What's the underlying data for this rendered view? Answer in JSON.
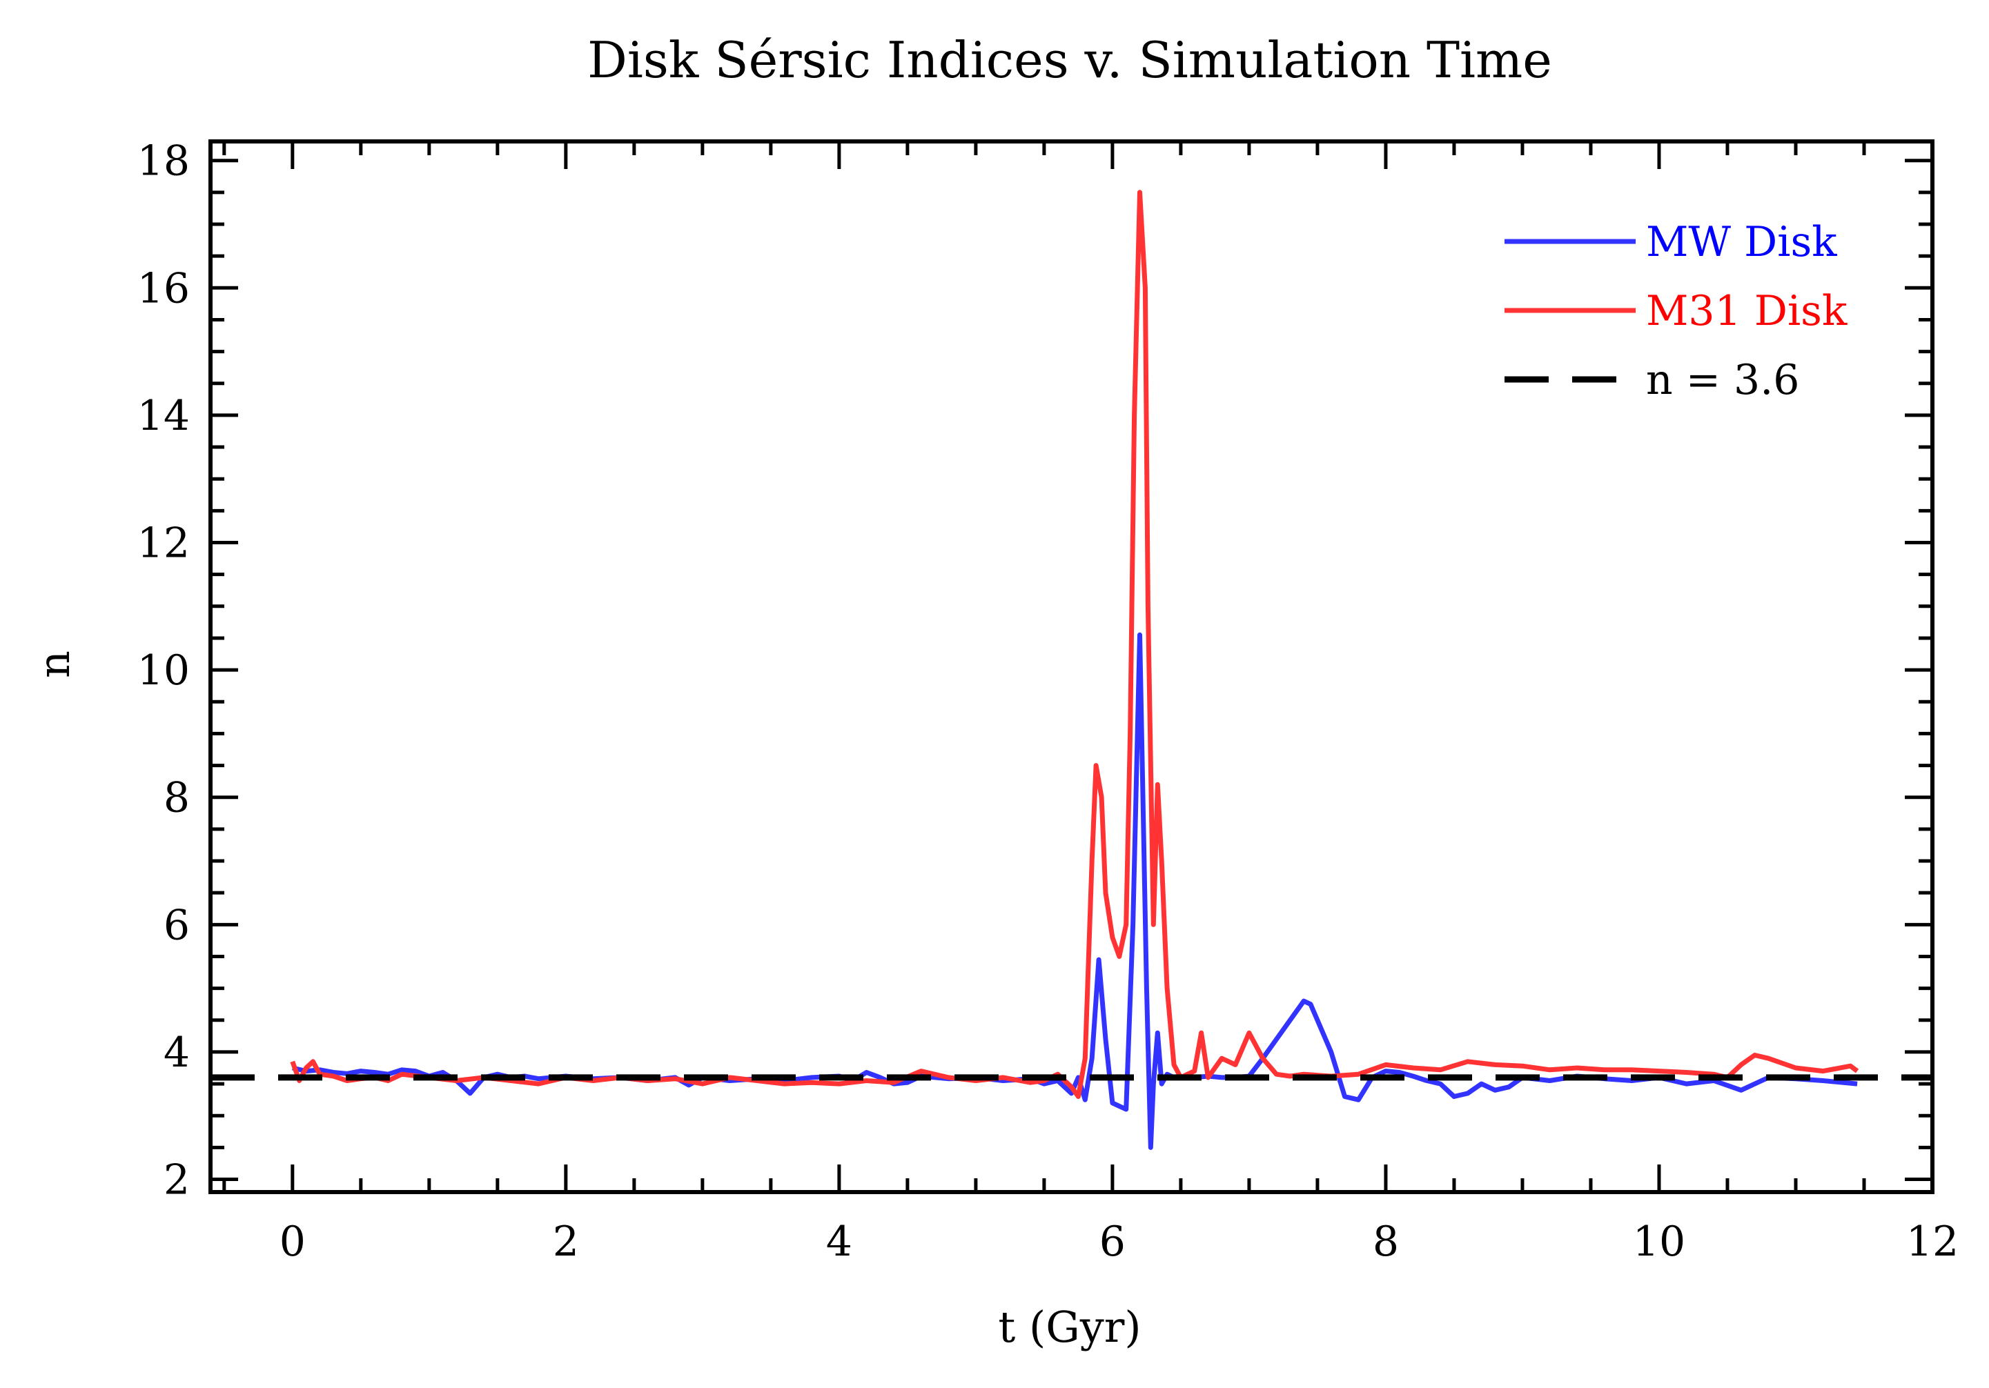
{
  "chart_data": {
    "type": "line",
    "title": "Disk Sérsic Indices v. Simulation Time",
    "xlabel": "t (Gyr)",
    "ylabel": "n",
    "xlim": [
      -0.6,
      12
    ],
    "ylim": [
      1.8,
      18.3
    ],
    "x_ticks": [
      0,
      2,
      4,
      6,
      8,
      10,
      12
    ],
    "x_tick_labels": [
      "0",
      "2",
      "4",
      "6",
      "8",
      "10",
      "12"
    ],
    "y_ticks": [
      2,
      4,
      6,
      8,
      10,
      12,
      14,
      16,
      18
    ],
    "y_tick_labels": [
      "2",
      "4",
      "6",
      "8",
      "10",
      "12",
      "14",
      "16",
      "18"
    ],
    "x_minor_step": 0.5,
    "y_minor_step": 0.5,
    "grid": false,
    "legend_position": "top-right",
    "series": [
      {
        "name": "MW Disk",
        "color": "#3333ff",
        "label_color": "#0000ff",
        "style": "solid",
        "x": [
          0,
          0.1,
          0.2,
          0.3,
          0.4,
          0.5,
          0.6,
          0.7,
          0.8,
          0.9,
          1.0,
          1.1,
          1.2,
          1.3,
          1.4,
          1.5,
          1.6,
          1.7,
          1.8,
          1.9,
          2.0,
          2.2,
          2.4,
          2.6,
          2.8,
          2.9,
          3.0,
          3.2,
          3.4,
          3.6,
          3.8,
          4.0,
          4.1,
          4.2,
          4.3,
          4.4,
          4.5,
          4.6,
          4.7,
          4.8,
          5.0,
          5.2,
          5.4,
          5.5,
          5.6,
          5.7,
          5.75,
          5.8,
          5.85,
          5.9,
          5.95,
          6.0,
          6.05,
          6.1,
          6.15,
          6.2,
          6.25,
          6.28,
          6.3,
          6.33,
          6.36,
          6.4,
          6.45,
          6.5,
          6.6,
          6.7,
          6.8,
          6.9,
          7.0,
          7.1,
          7.2,
          7.3,
          7.4,
          7.45,
          7.5,
          7.6,
          7.7,
          7.8,
          7.9,
          8.0,
          8.1,
          8.2,
          8.3,
          8.4,
          8.5,
          8.6,
          8.7,
          8.8,
          8.9,
          9.0,
          9.2,
          9.4,
          9.6,
          9.8,
          10.0,
          10.2,
          10.4,
          10.6,
          10.8,
          11.0,
          11.2,
          11.45
        ],
        "y": [
          3.75,
          3.7,
          3.72,
          3.68,
          3.66,
          3.7,
          3.68,
          3.65,
          3.72,
          3.7,
          3.62,
          3.68,
          3.55,
          3.35,
          3.6,
          3.65,
          3.6,
          3.62,
          3.58,
          3.6,
          3.62,
          3.58,
          3.6,
          3.55,
          3.6,
          3.48,
          3.6,
          3.55,
          3.58,
          3.55,
          3.6,
          3.62,
          3.55,
          3.68,
          3.6,
          3.5,
          3.52,
          3.62,
          3.6,
          3.58,
          3.6,
          3.55,
          3.58,
          3.5,
          3.55,
          3.35,
          3.6,
          3.25,
          3.9,
          5.45,
          4.2,
          3.2,
          3.15,
          3.1,
          6.0,
          10.55,
          5.0,
          2.5,
          3.5,
          4.3,
          3.5,
          3.65,
          3.6,
          3.6,
          3.6,
          3.62,
          3.6,
          3.6,
          3.62,
          3.9,
          4.2,
          4.5,
          4.8,
          4.75,
          4.5,
          4.0,
          3.3,
          3.25,
          3.6,
          3.7,
          3.68,
          3.62,
          3.55,
          3.5,
          3.3,
          3.35,
          3.5,
          3.4,
          3.45,
          3.6,
          3.55,
          3.62,
          3.58,
          3.55,
          3.6,
          3.5,
          3.55,
          3.4,
          3.6,
          3.58,
          3.55,
          3.5
        ]
      },
      {
        "name": "M31 Disk",
        "color": "#ff3333",
        "label_color": "#ff0000",
        "style": "solid",
        "x": [
          0,
          0.05,
          0.1,
          0.15,
          0.2,
          0.3,
          0.4,
          0.5,
          0.6,
          0.7,
          0.8,
          1.0,
          1.2,
          1.4,
          1.6,
          1.8,
          2.0,
          2.2,
          2.4,
          2.6,
          2.8,
          3.0,
          3.2,
          3.4,
          3.6,
          3.8,
          4.0,
          4.2,
          4.4,
          4.6,
          4.8,
          5.0,
          5.2,
          5.4,
          5.5,
          5.6,
          5.7,
          5.75,
          5.8,
          5.85,
          5.88,
          5.92,
          5.95,
          6.0,
          6.05,
          6.1,
          6.13,
          6.16,
          6.2,
          6.24,
          6.26,
          6.3,
          6.33,
          6.36,
          6.4,
          6.45,
          6.5,
          6.55,
          6.6,
          6.65,
          6.7,
          6.8,
          6.9,
          7.0,
          7.1,
          7.2,
          7.3,
          7.4,
          7.6,
          7.8,
          8.0,
          8.2,
          8.4,
          8.6,
          8.8,
          9.0,
          9.2,
          9.4,
          9.6,
          9.8,
          10.0,
          10.2,
          10.4,
          10.5,
          10.6,
          10.7,
          10.8,
          11.0,
          11.2,
          11.4,
          11.45
        ],
        "y": [
          3.85,
          3.55,
          3.75,
          3.85,
          3.65,
          3.62,
          3.55,
          3.58,
          3.6,
          3.55,
          3.65,
          3.6,
          3.55,
          3.6,
          3.55,
          3.5,
          3.6,
          3.55,
          3.6,
          3.55,
          3.58,
          3.5,
          3.6,
          3.55,
          3.5,
          3.52,
          3.5,
          3.55,
          3.52,
          3.7,
          3.6,
          3.55,
          3.6,
          3.52,
          3.55,
          3.65,
          3.45,
          3.3,
          3.9,
          7.0,
          8.5,
          8.0,
          6.5,
          5.8,
          5.5,
          6.0,
          9.0,
          14.0,
          17.5,
          16.0,
          11.0,
          6.0,
          8.2,
          7.0,
          5.0,
          3.8,
          3.6,
          3.65,
          3.7,
          4.3,
          3.6,
          3.9,
          3.8,
          4.3,
          3.9,
          3.65,
          3.62,
          3.65,
          3.62,
          3.65,
          3.8,
          3.75,
          3.72,
          3.85,
          3.8,
          3.78,
          3.72,
          3.75,
          3.72,
          3.72,
          3.7,
          3.68,
          3.65,
          3.6,
          3.8,
          3.95,
          3.9,
          3.75,
          3.7,
          3.78,
          3.7
        ]
      },
      {
        "name": "n = 3.6",
        "color": "#000000",
        "label_color": "#000000",
        "style": "dashed",
        "x": [
          -0.6,
          12
        ],
        "y": [
          3.6,
          3.6
        ]
      }
    ]
  }
}
